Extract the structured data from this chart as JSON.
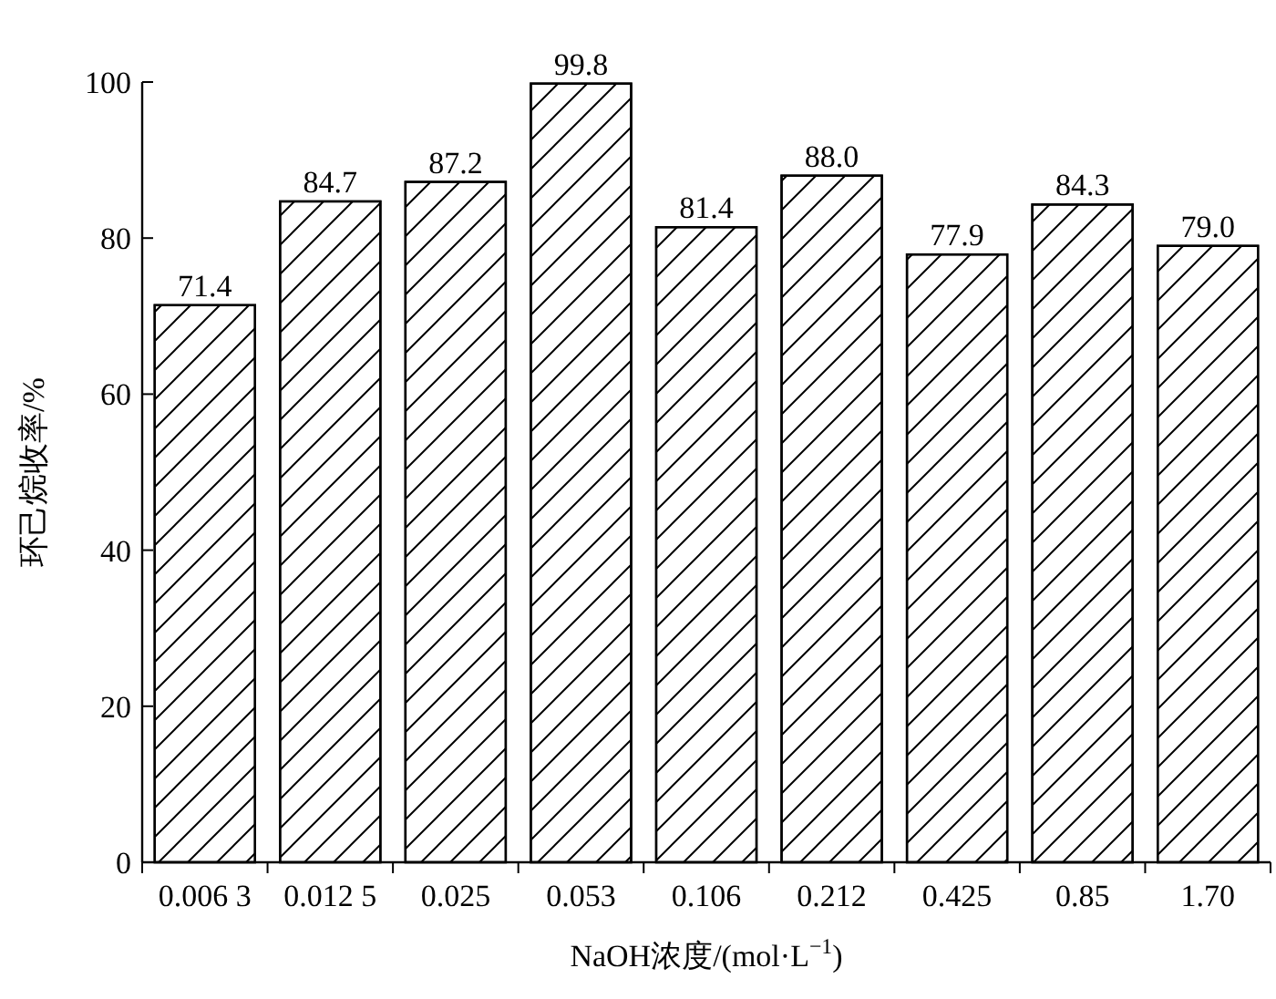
{
  "chart_data": {
    "type": "bar",
    "xlabel": "NaOH浓度/(mol·L$^{−1}$)",
    "ylabel": "环己烷收率/%",
    "categories": [
      "0.006 3",
      "0.012 5",
      "0.025",
      "0.053",
      "0.106",
      "0.212",
      "0.425",
      "0.85",
      "1.70"
    ],
    "values": [
      71.4,
      84.7,
      87.2,
      99.8,
      81.4,
      88.0,
      77.9,
      84.3,
      79.0
    ],
    "value_labels": [
      "71.4",
      "84.7",
      "87.2",
      "99.8",
      "81.4",
      "88.0",
      "77.9",
      "84.3",
      "79.0"
    ],
    "color": "#ffffff",
    "ylim": [
      0,
      100
    ],
    "yticks": [
      0,
      20,
      40,
      60,
      80,
      100
    ]
  }
}
